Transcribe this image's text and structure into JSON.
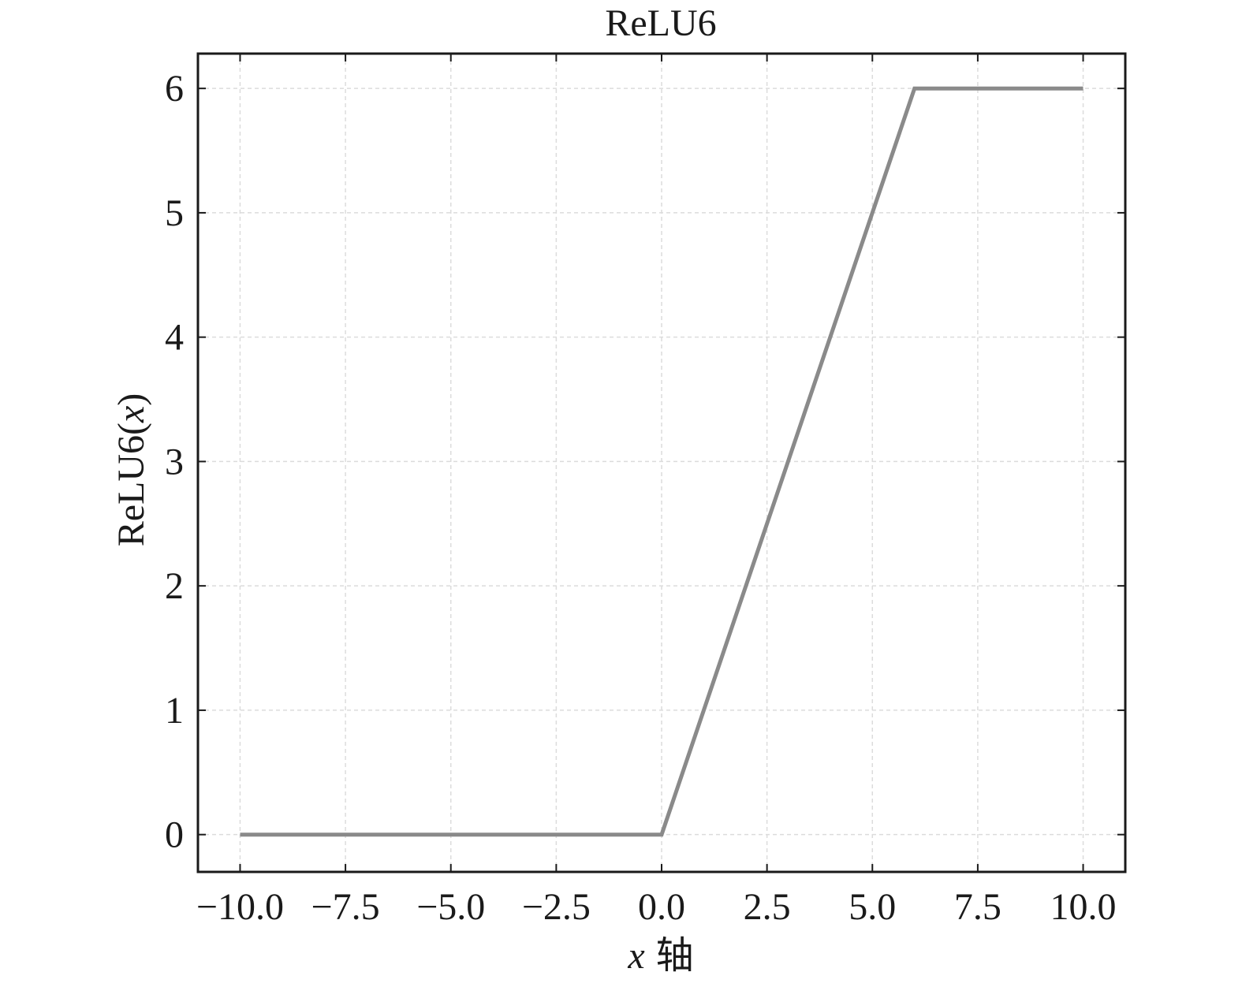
{
  "chart_data": {
    "type": "line",
    "title": "ReLU6",
    "xlabel": {
      "var": "x",
      "suffix": "轴"
    },
    "ylabel": {
      "prefix": "ReLU6(",
      "var": "x",
      "suffix": ")"
    },
    "xlim": [
      -11,
      11
    ],
    "ylim": [
      -0.3,
      6.28
    ],
    "x_ticks": [
      -10.0,
      -7.5,
      -5.0,
      -2.5,
      0.0,
      2.5,
      5.0,
      7.5,
      10.0
    ],
    "x_tick_labels": [
      "−10.0",
      "−7.5",
      "−5.0",
      "−2.5",
      "0.0",
      "2.5",
      "5.0",
      "7.5",
      "10.0"
    ],
    "y_ticks": [
      0,
      1,
      2,
      3,
      4,
      5,
      6
    ],
    "y_tick_labels": [
      "0",
      "1",
      "2",
      "3",
      "4",
      "5",
      "6"
    ],
    "grid": true,
    "series": [
      {
        "color": "#8a8a8a",
        "x": [
          -10,
          0,
          6,
          10
        ],
        "y": [
          0,
          0,
          6,
          6
        ]
      }
    ]
  }
}
